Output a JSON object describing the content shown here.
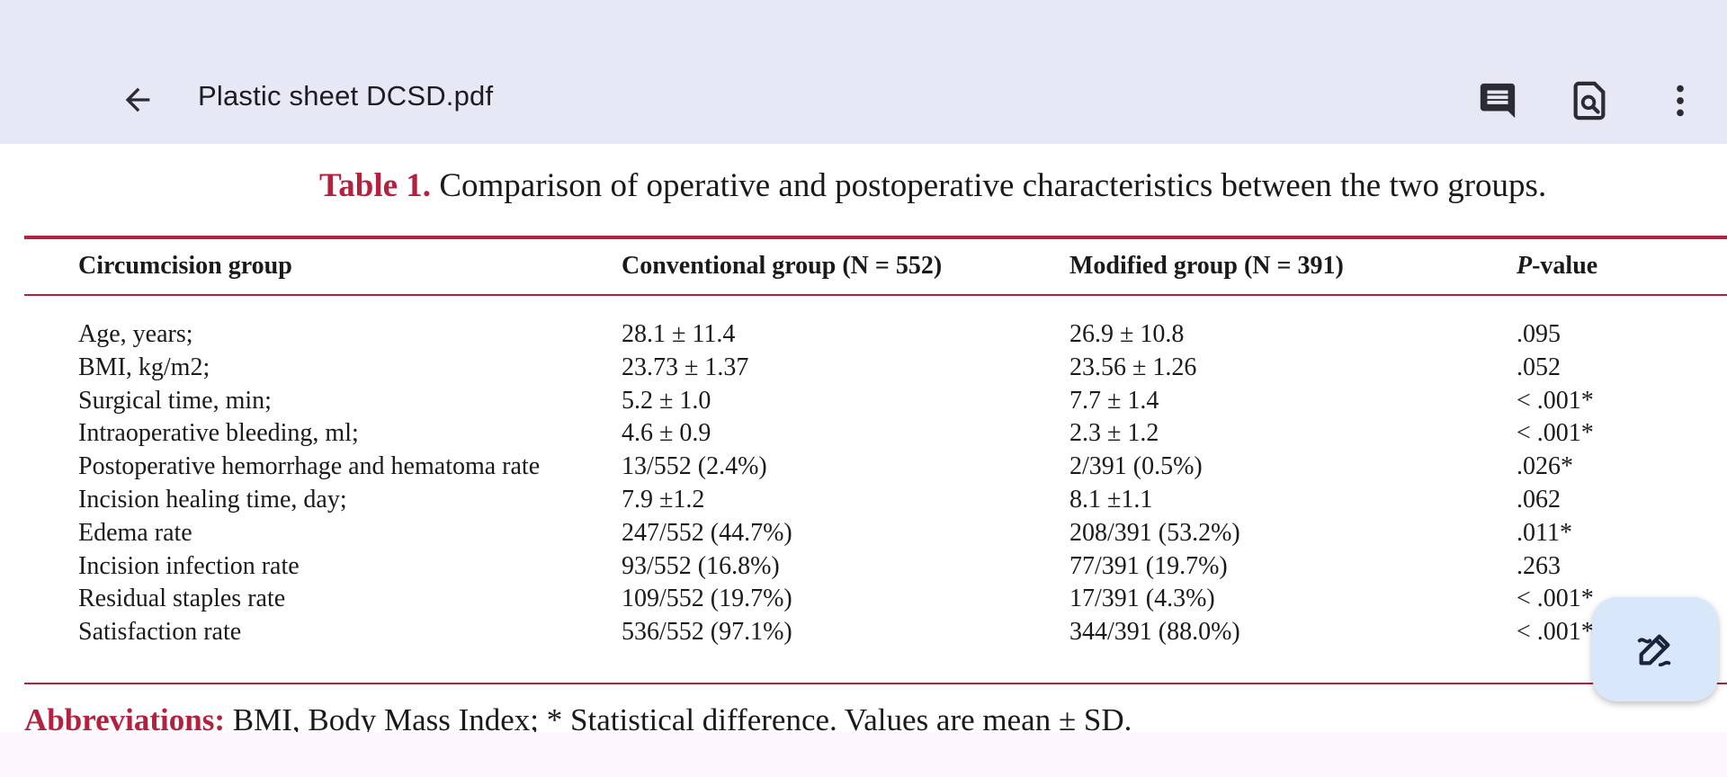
{
  "appbar": {
    "title": "Plastic sheet DCSD.pdf",
    "back_icon": "arrow-back-icon",
    "actions": [
      "comment-icon",
      "search-document-icon",
      "more-vert-icon"
    ],
    "background": "#e7e8f5"
  },
  "document": {
    "caption_lead": "Table 1.",
    "caption_text": " Comparison of operative and postoperative characteristics between the two groups.",
    "accent_color": "#b3213f",
    "table": {
      "headers": {
        "group": "Circumcision group",
        "conventional": "Conventional group (N = 552)",
        "modified": "Modified group (N = 391)",
        "p_italic": "P",
        "p_rest": "-value"
      },
      "rows": [
        {
          "label": "Age, years;",
          "conventional": "28.1 ± 11.4",
          "modified": "26.9 ± 10.8",
          "p": ".095"
        },
        {
          "label": "BMI, kg/m2;",
          "conventional": "23.73 ± 1.37",
          "modified": "23.56 ± 1.26",
          "p": ".052"
        },
        {
          "label": "Surgical time, min;",
          "conventional": "5.2 ± 1.0",
          "modified": "7.7 ± 1.4",
          "p": "< .001*"
        },
        {
          "label": "Intraoperative bleeding, ml;",
          "conventional": "4.6 ± 0.9",
          "modified": "2.3 ± 1.2",
          "p": "< .001*"
        },
        {
          "label": "Postoperative hemorrhage and hematoma rate",
          "conventional": "13/552 (2.4%)",
          "modified": "2/391 (0.5%)",
          "p": ".026*"
        },
        {
          "label": "Incision healing time, day;",
          "conventional": "7.9 ±1.2",
          "modified": "8.1 ±1.1",
          "p": " .062"
        },
        {
          "label": "Edema rate",
          "conventional": "247/552 (44.7%)",
          "modified": "208/391 (53.2%)",
          "p": " .011*"
        },
        {
          "label": "Incision infection rate",
          "conventional": "93/552 (16.8%)",
          "modified": "77/391 (19.7%)",
          "p": " .263"
        },
        {
          "label": "Residual staples rate",
          "conventional": "109/552 (19.7%)",
          "modified": "17/391 (4.3%)",
          "p": "< .001*"
        },
        {
          "label": "Satisfaction rate",
          "conventional": "536/552 (97.1%)",
          "modified": "344/391 (88.0%)",
          "p": "< .001*"
        }
      ]
    },
    "abbrev_lead": "Abbreviations:",
    "abbrev_text": " BMI, Body Mass Index; * Statistical difference. Values are mean ± SD."
  },
  "fab": {
    "icon": "edit-annotate-icon",
    "background": "#d9e7fb"
  }
}
